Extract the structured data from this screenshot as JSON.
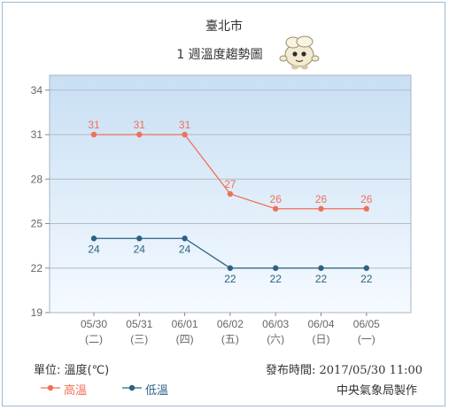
{
  "header": {
    "city": "臺北市",
    "subtitle": "1 週溫度趨勢圖"
  },
  "footer": {
    "unit": "單位: 溫度(℃)",
    "published": "發布時間: 2017/05/30  11:00",
    "producer": "中央氣象局製作"
  },
  "chart_data": {
    "type": "line",
    "title": "1 週溫度趨勢圖",
    "categories": [
      "05/30",
      "05/31",
      "06/01",
      "06/02",
      "06/03",
      "06/04",
      "06/05"
    ],
    "weekdays": [
      "(二)",
      "(三)",
      "(四)",
      "(五)",
      "(六)",
      "(日)",
      "(一)"
    ],
    "series": [
      {
        "name": "高溫",
        "values": [
          31,
          31,
          31,
          27,
          26,
          26,
          26
        ],
        "color": "#f07058"
      },
      {
        "name": "低溫",
        "values": [
          24,
          24,
          24,
          22,
          22,
          22,
          22
        ],
        "color": "#2e6282"
      }
    ],
    "ylim": [
      19,
      35
    ],
    "yticks": [
      19,
      22,
      25,
      28,
      31,
      34
    ],
    "grid": true,
    "legend": "bottom-left",
    "colors": {
      "background_top": "#c8dff4",
      "background_bottom": "#f5faff",
      "grid": "#b9b9b9"
    }
  }
}
